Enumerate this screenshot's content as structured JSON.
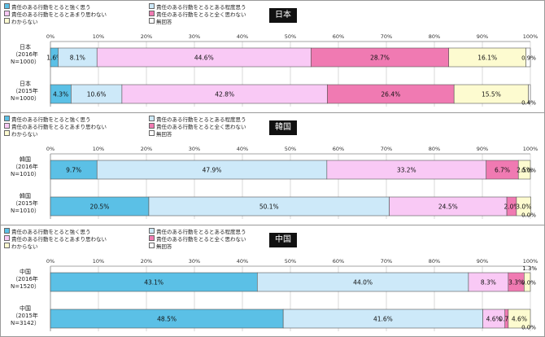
{
  "legend": [
    {
      "label": "責任のある行動をとると強く思う",
      "color": "#5bc0e6"
    },
    {
      "label": "責任のある行動をとるとある程度思う",
      "color": "#cde9f9"
    },
    {
      "label": "責任のある行動をとるとあまり思わない",
      "color": "#f9c9f5"
    },
    {
      "label": "責任のある行動をとると全く思わない",
      "color": "#f07ab2"
    },
    {
      "label": "わからない",
      "color": "#fdfbd0"
    },
    {
      "label": "無回答",
      "color": "#ffffff"
    }
  ],
  "chart_data": [
    {
      "type": "bar",
      "stacked": true,
      "orientation": "horizontal",
      "title": "日本",
      "xlim": [
        0,
        100
      ],
      "ticks": [
        "0%",
        "10%",
        "20%",
        "30%",
        "40%",
        "50%",
        "60%",
        "70%",
        "80%",
        "90%",
        "100%"
      ],
      "categories": [
        [
          "日本",
          "（2016年",
          "N=1000）"
        ],
        [
          "日本",
          "（2015年",
          "N=1000）"
        ]
      ],
      "series": [
        {
          "name": "責任のある行動をとると強く思う",
          "values": [
            1.6,
            4.3
          ]
        },
        {
          "name": "責任のある行動をとるとある程度思う",
          "values": [
            8.1,
            10.6
          ]
        },
        {
          "name": "責任のある行動をとるとあまり思わない",
          "values": [
            44.6,
            42.8
          ]
        },
        {
          "name": "責任のある行動をとると全く思わない",
          "values": [
            28.7,
            26.4
          ]
        },
        {
          "name": "わからない",
          "values": [
            16.1,
            15.5
          ]
        },
        {
          "name": "無回答",
          "values": [
            0.9,
            0.4
          ]
        }
      ],
      "labels": [
        [
          "1.6%",
          "8.1%",
          "44.6%",
          "28.7%",
          "16.1%",
          "0.9%"
        ],
        [
          "4.3%",
          "10.6%",
          "42.8%",
          "26.4%",
          "15.5%",
          "0.4%"
        ]
      ]
    },
    {
      "type": "bar",
      "stacked": true,
      "orientation": "horizontal",
      "title": "韓国",
      "xlim": [
        0,
        100
      ],
      "ticks": [
        "0%",
        "10%",
        "20%",
        "30%",
        "40%",
        "50%",
        "60%",
        "70%",
        "80%",
        "90%",
        "100%"
      ],
      "categories": [
        [
          "韓国",
          "（2016年",
          "N=1010）"
        ],
        [
          "韓国",
          "（2015年",
          "N=1010）"
        ]
      ],
      "series": [
        {
          "name": "責任のある行動をとると強く思う",
          "values": [
            9.7,
            20.5
          ]
        },
        {
          "name": "責任のある行動をとるとある程度思う",
          "values": [
            47.9,
            50.1
          ]
        },
        {
          "name": "責任のある行動をとるとあまり思わない",
          "values": [
            33.2,
            24.5
          ]
        },
        {
          "name": "責任のある行動をとると全く思わない",
          "values": [
            6.7,
            2.0
          ]
        },
        {
          "name": "わからない",
          "values": [
            2.5,
            3.0
          ]
        },
        {
          "name": "無回答",
          "values": [
            0.0,
            0.0
          ]
        }
      ],
      "labels": [
        [
          "9.7%",
          "47.9%",
          "33.2%",
          "6.7%",
          "2.5%",
          "0.0%"
        ],
        [
          "20.5%",
          "50.1%",
          "24.5%",
          "2.0%",
          "3.0%",
          "0.0%"
        ]
      ]
    },
    {
      "type": "bar",
      "stacked": true,
      "orientation": "horizontal",
      "title": "中国",
      "xlim": [
        0,
        100
      ],
      "ticks": [
        "0%",
        "10%",
        "20%",
        "30%",
        "40%",
        "50%",
        "60%",
        "70%",
        "80%",
        "90%",
        "100%"
      ],
      "categories": [
        [
          "中国",
          "（2016年",
          "N=1520）"
        ],
        [
          "中国",
          "（2015年",
          "N=3142）"
        ]
      ],
      "series": [
        {
          "name": "責任のある行動をとると強く思う",
          "values": [
            43.1,
            48.5
          ]
        },
        {
          "name": "責任のある行動をとるとある程度思う",
          "values": [
            44.0,
            41.6
          ]
        },
        {
          "name": "責任のある行動をとるとあまり思わない",
          "values": [
            8.3,
            4.6
          ]
        },
        {
          "name": "責任のある行動をとると全く思わない",
          "values": [
            3.3,
            0.7
          ]
        },
        {
          "name": "わからない",
          "values": [
            1.3,
            4.6
          ]
        },
        {
          "name": "無回答",
          "values": [
            0.0,
            0.0
          ]
        }
      ],
      "labels": [
        [
          "43.1%",
          "44.0%",
          "8.3%",
          "3.3%",
          "1.3%",
          "0.0%"
        ],
        [
          "48.5%",
          "41.6%",
          "4.6%",
          "0.7%",
          "4.6%",
          "0.0%"
        ]
      ]
    }
  ]
}
